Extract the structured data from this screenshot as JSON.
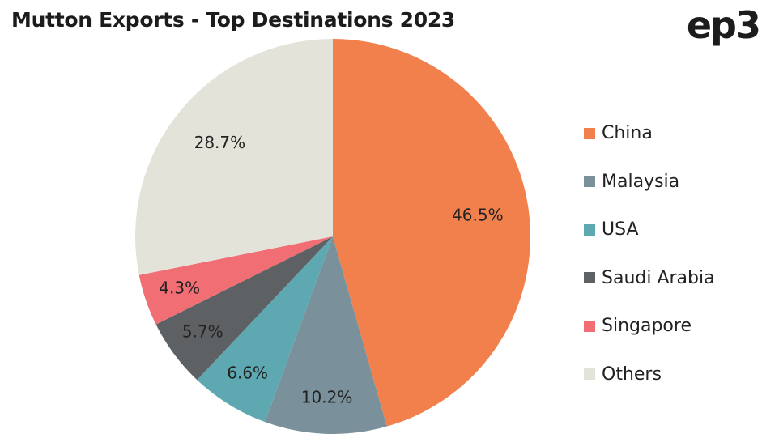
{
  "header": {
    "title": "Mutton Exports - Top Destinations 2023",
    "logo_text": "ep3"
  },
  "chart_data": {
    "type": "pie",
    "title": "Mutton Exports - Top Destinations 2023",
    "categories": [
      "China",
      "Malaysia",
      "USA",
      "Saudi Arabia",
      "Singapore",
      "Others"
    ],
    "values": [
      46.5,
      10.2,
      6.6,
      5.7,
      4.3,
      28.7
    ],
    "labels": [
      "46.5%",
      "10.2%",
      "6.6%",
      "5.7%",
      "4.3%",
      "28.7%"
    ],
    "colors": [
      "#f2804d",
      "#7a919c",
      "#5ea9b1",
      "#5d6164",
      "#f06e74",
      "#e4e3d9"
    ],
    "legend_position": "right",
    "start": "12 o'clock",
    "direction": "clockwise"
  }
}
